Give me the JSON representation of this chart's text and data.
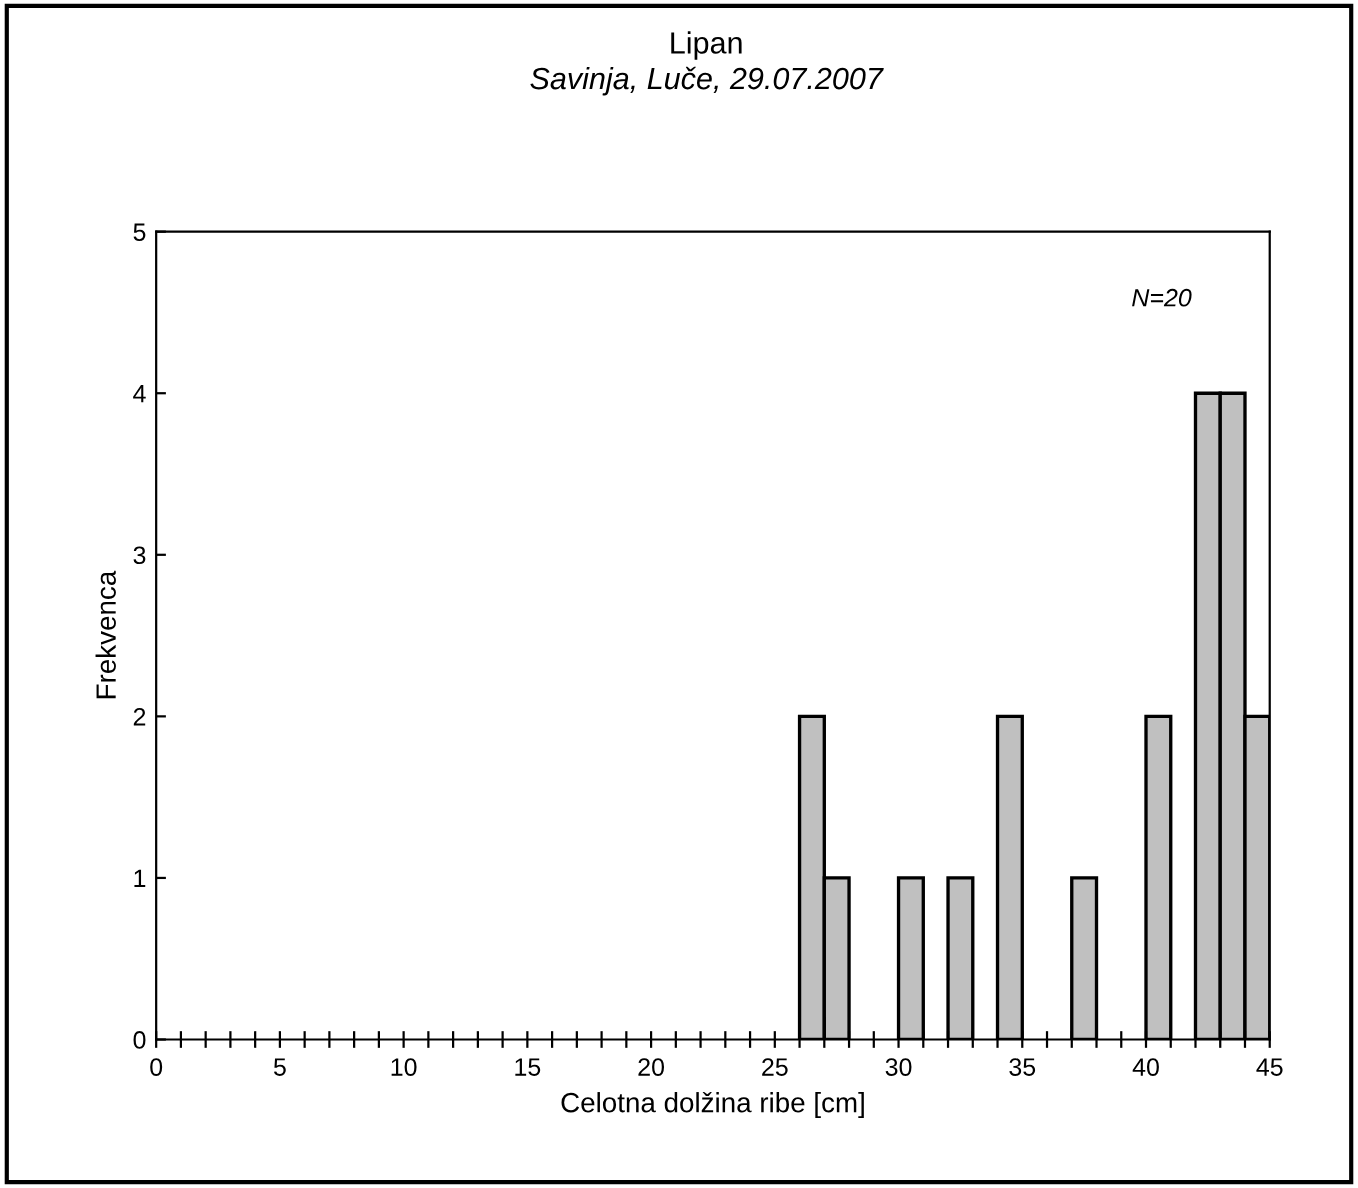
{
  "chart_data": {
    "type": "histogram",
    "title": "Lipan",
    "subtitle": "Savinja, Luče, 29.07.2007",
    "xlabel": "Celotna dolžina ribe [cm]",
    "ylabel": "Frekvenca",
    "annotations": [
      "N=20"
    ],
    "bins": [
      0,
      1,
      2,
      3,
      4,
      5,
      6,
      7,
      8,
      9,
      10,
      11,
      12,
      13,
      14,
      15,
      16,
      17,
      18,
      19,
      20,
      21,
      22,
      23,
      24,
      25,
      26,
      27,
      28,
      29,
      30,
      31,
      32,
      33,
      34,
      35,
      36,
      37,
      38,
      39,
      40,
      41,
      42,
      43,
      44,
      45
    ],
    "values": [
      0,
      0,
      0,
      0,
      0,
      0,
      0,
      0,
      0,
      0,
      0,
      0,
      0,
      0,
      0,
      0,
      0,
      0,
      0,
      0,
      0,
      0,
      0,
      0,
      0,
      0,
      2,
      1,
      0,
      0,
      1,
      0,
      1,
      0,
      2,
      0,
      0,
      1,
      0,
      0,
      2,
      0,
      4,
      4,
      2
    ],
    "color": "#c0c0c0",
    "xlim": [
      0,
      45
    ],
    "ylim": [
      0,
      5
    ],
    "xticks": [
      0,
      {
        "value": 1,
        "label": null
      },
      {
        "value": 2,
        "label": null
      },
      {
        "value": 3,
        "label": null
      },
      {
        "value": 4,
        "label": null
      },
      5,
      {
        "value": 6,
        "label": null
      },
      {
        "value": 7,
        "label": null
      },
      {
        "value": 8,
        "label": null
      },
      {
        "value": 9,
        "label": null
      },
      10,
      {
        "value": 11,
        "label": null
      },
      {
        "value": 12,
        "label": null
      },
      {
        "value": 13,
        "label": null
      },
      {
        "value": 14,
        "label": null
      },
      15,
      {
        "value": 16,
        "label": null
      },
      {
        "value": 17,
        "label": null
      },
      {
        "value": 18,
        "label": null
      },
      {
        "value": 19,
        "label": null
      },
      20,
      {
        "value": 21,
        "label": null
      },
      {
        "value": 22,
        "label": null
      },
      {
        "value": 23,
        "label": null
      },
      {
        "value": 24,
        "label": null
      },
      25,
      {
        "value": 26,
        "label": null
      },
      {
        "value": 27,
        "label": null
      },
      {
        "value": 28,
        "label": null
      },
      {
        "value": 29,
        "label": null
      },
      30,
      {
        "value": 31,
        "label": null
      },
      {
        "value": 32,
        "label": null
      },
      {
        "value": 33,
        "label": null
      },
      {
        "value": 34,
        "label": null
      },
      35,
      {
        "value": 36,
        "label": null
      },
      {
        "value": 37,
        "label": null
      },
      {
        "value": 38,
        "label": null
      },
      {
        "value": 39,
        "label": null
      },
      40,
      {
        "value": 41,
        "label": null
      },
      {
        "value": 42,
        "label": null
      },
      {
        "value": 43,
        "label": null
      },
      {
        "value": 44,
        "label": null
      },
      45
    ],
    "yticks": [
      0,
      1,
      2,
      3,
      4,
      5
    ],
    "grid": false,
    "legend": false
  }
}
